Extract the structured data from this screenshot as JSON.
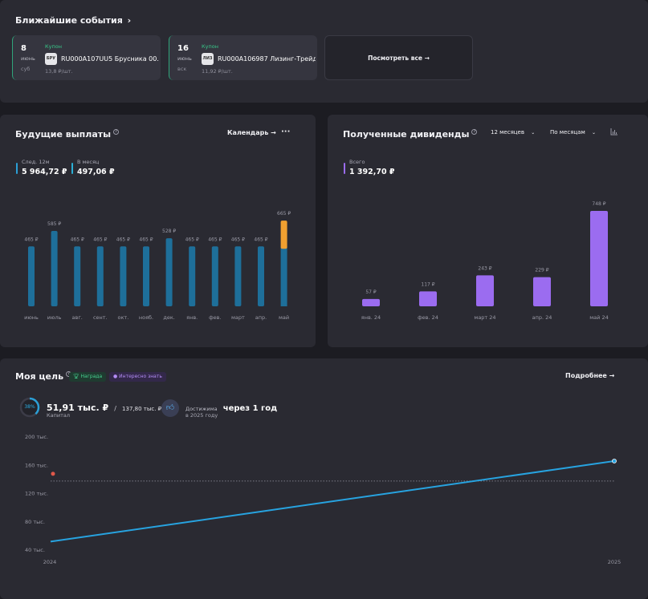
{
  "events": {
    "title": "Ближайшие события",
    "chevron": "›",
    "cards": [
      {
        "day": "8",
        "month": "июнь",
        "weekday": "суб",
        "type": "Купон",
        "logo": "БРУ",
        "name": "RU000A107UU5 Брусника 00...",
        "price": "13,8 ₽/шт."
      },
      {
        "day": "16",
        "month": "июнь",
        "weekday": "вск",
        "type": "Купон",
        "logo": "ЛИЗ",
        "name": "RU000A106987 Лизинг-Трейд...",
        "price": "11,92 ₽/шт."
      }
    ],
    "view_all": "Посмотреть все →"
  },
  "payouts": {
    "title": "Будущие выплаты",
    "calendar": "Календарь →",
    "more": "···",
    "stat1_label": "След. 12м",
    "stat1_value": "5 964,72 ₽",
    "stat2_label": "В месяц",
    "stat2_value": "497,06 ₽",
    "colors": {
      "bar": "#1e6f9a",
      "highlight": "#f0a030",
      "legend1": "#2b9fd6",
      "legend2": "#2bb0d6"
    }
  },
  "dividends": {
    "title": "Полученные дивиденды",
    "period": "12 месяцев",
    "grouping": "По месяцам",
    "total_label": "Всего",
    "total_value": "1 392,70 ₽",
    "colors": {
      "bar": "#9b6cf0"
    }
  },
  "goal": {
    "title": "Моя цель",
    "tag_reward": "Награда",
    "tag_interest": "Интересно знать",
    "details": "Подробнее →",
    "percent": "38%",
    "capital_value": "51,91 тыс. ₽",
    "capital_sep": "/",
    "capital_target": "137,80 тыс. ₽",
    "capital_label": "Капитал",
    "reach_prefix": "Достижима",
    "reach_time": "через 1 год",
    "reach_sub": "в 2025 году",
    "colors": {
      "line": "#27a3e0",
      "ring": "#2b9fd6"
    }
  },
  "chart_data": [
    {
      "type": "bar",
      "categories": [
        "июнь",
        "июль",
        "авг.",
        "сент.",
        "окт.",
        "нояб.",
        "дек.",
        "янв.",
        "фев.",
        "март",
        "апр.",
        "май"
      ],
      "values": [
        465,
        585,
        465,
        465,
        465,
        465,
        528,
        465,
        465,
        465,
        465,
        665
      ],
      "data_labels": [
        "465 ₽",
        "585 ₽",
        "465 ₽",
        "465 ₽",
        "465 ₽",
        "465 ₽",
        "528 ₽",
        "465 ₽",
        "465 ₽",
        "465 ₽",
        "465 ₽",
        "665 ₽"
      ]
    },
    {
      "type": "bar",
      "categories": [
        "янв. 24",
        "фев. 24",
        "март 24",
        "апр. 24",
        "май 24"
      ],
      "values": [
        57,
        117,
        243,
        229,
        748
      ],
      "data_labels": [
        "57 ₽",
        "117 ₽",
        "243 ₽",
        "229 ₽",
        "748 ₽"
      ]
    },
    {
      "type": "line",
      "x": [
        "2024",
        "2025"
      ],
      "y": [
        52,
        166
      ],
      "ylim": [
        40,
        200
      ],
      "y_ticks": [
        "200 тыс.",
        "160 тыс.",
        "120 тыс.",
        "80 тыс.",
        "40 тыс."
      ],
      "target": 137.8,
      "grid": false
    }
  ]
}
